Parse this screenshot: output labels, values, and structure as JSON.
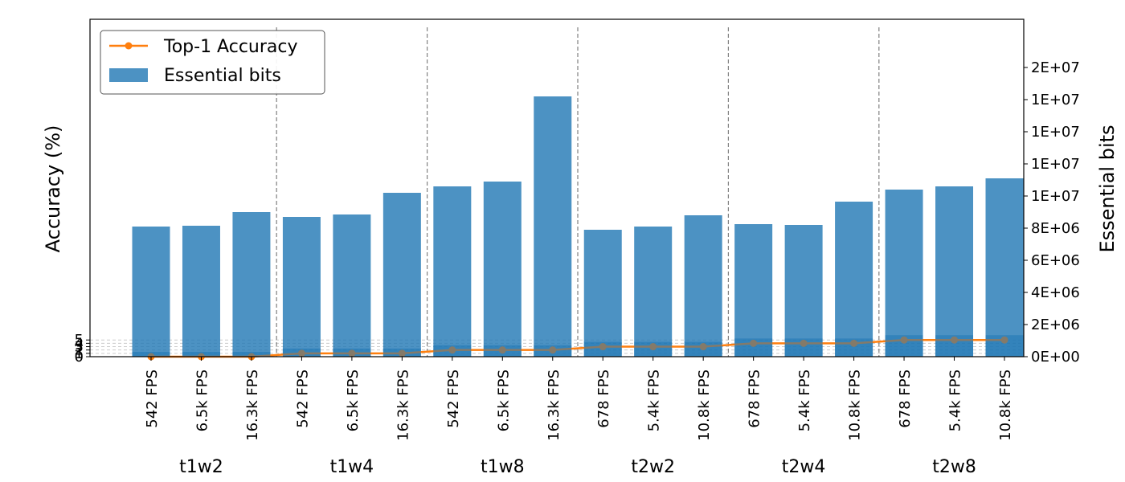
{
  "chart_data": {
    "type": "bar",
    "title": "",
    "ylabel_left": "Accuracy (%)",
    "ylabel_right": "Essential bits",
    "groups": [
      "t1w2",
      "t1w4",
      "t1w8",
      "t2w2",
      "t2w4",
      "t2w8"
    ],
    "categories": [
      "542 FPS",
      "6.5k FPS",
      "16.3k FPS",
      "542 FPS",
      "6.5k FPS",
      "16.3k FPS",
      "542 FPS",
      "6.5k FPS",
      "16.3k FPS",
      "678 FPS",
      "5.4k FPS",
      "10.8k FPS",
      "678 FPS",
      "5.4k FPS",
      "10.8k FPS",
      "678 FPS",
      "5.4k FPS",
      "10.8k FPS"
    ],
    "series": [
      {
        "name": "Essential bits",
        "axis": "right",
        "type": "bar",
        "color": "#1f77b4",
        "values": [
          8100000,
          8150000,
          9000000,
          8700000,
          8850000,
          10200000,
          10600000,
          10900000,
          16200000,
          7900000,
          8100000,
          8800000,
          8250000,
          8200000,
          9650000,
          10400000,
          10600000,
          11100000
        ]
      },
      {
        "name": "Top-1 Accuracy",
        "axis": "left",
        "type": "line",
        "color": "#ff7f0e",
        "values": [
          0,
          0,
          0,
          1,
          1,
          1,
          2,
          2,
          2,
          3,
          3,
          3,
          4,
          4,
          4,
          5,
          5,
          5
        ]
      }
    ],
    "yticks_left": [
      "0",
      "1",
      "2",
      "3",
      "4",
      "5"
    ],
    "ylim_left": [
      0,
      101
    ],
    "yticks_right": [
      "0E+00",
      "2E+06",
      "4E+06",
      "6E+06",
      "8E+06",
      "1E+07",
      "1E+07",
      "1E+07",
      "1E+07",
      "2E+07"
    ],
    "ylim_right": [
      0,
      21000000
    ],
    "legend": {
      "placement": "top-left",
      "entries": [
        "Top-1 Accuracy",
        "Essential bits"
      ]
    },
    "grid_left": true
  }
}
